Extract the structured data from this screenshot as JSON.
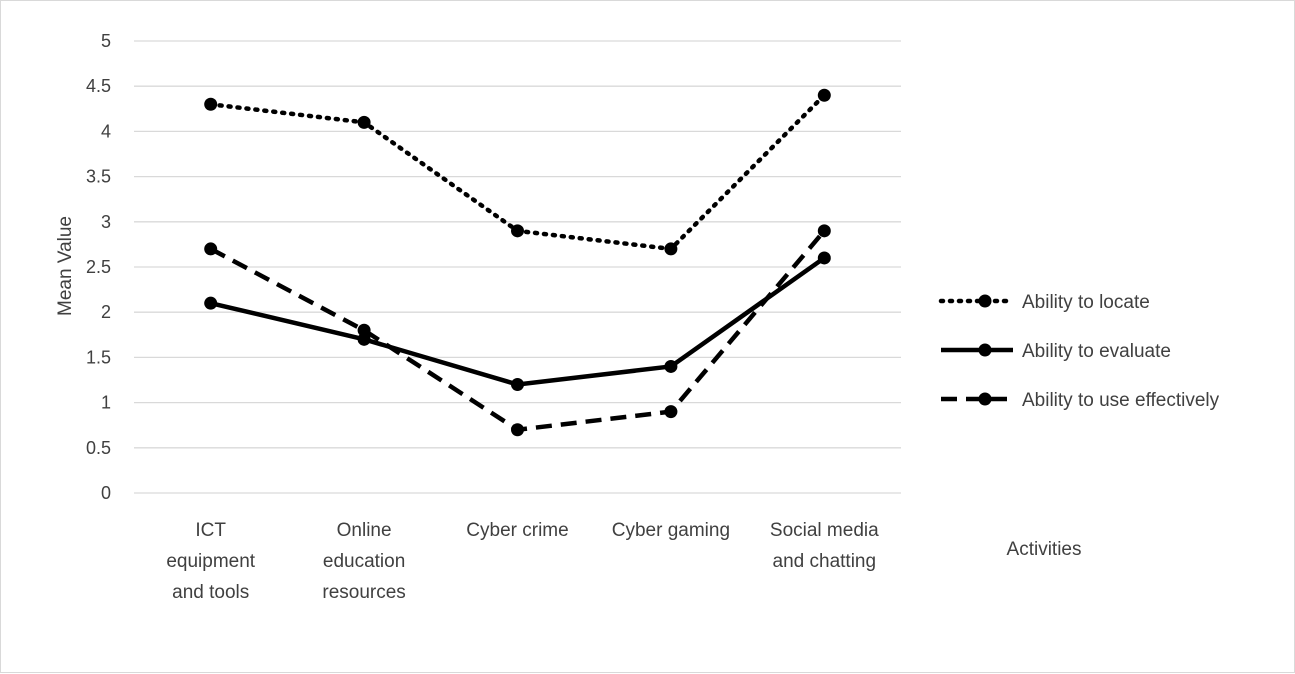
{
  "chart_data": {
    "type": "line",
    "categories": [
      [
        "ICT",
        "equipment",
        "and tools"
      ],
      [
        "Online",
        "education",
        "resources"
      ],
      [
        "Cyber crime"
      ],
      [
        "Cyber gaming"
      ],
      [
        "Social media",
        "and chatting"
      ]
    ],
    "series": [
      {
        "name": "Ability to locate",
        "values": [
          4.3,
          4.1,
          2.9,
          2.7,
          4.4
        ],
        "line_style": "dotted",
        "color": "#000000"
      },
      {
        "name": "Ability to evaluate",
        "values": [
          2.1,
          1.7,
          1.2,
          1.4,
          2.6
        ],
        "line_style": "solid",
        "color": "#000000"
      },
      {
        "name": "Ability to use effectively",
        "values": [
          2.7,
          1.8,
          0.7,
          0.9,
          2.9
        ],
        "line_style": "dashed",
        "color": "#000000"
      }
    ],
    "ylabel": "Mean Value",
    "xlabel": "Activities",
    "ylim": [
      0,
      5
    ],
    "yticks": [
      "0",
      "0.5",
      "1",
      "1.5",
      "2",
      "2.5",
      "3",
      "3.5",
      "4",
      "4.5",
      "5"
    ],
    "grid": true,
    "legend_position": "right",
    "gridline_color": "#d9d9d9"
  }
}
